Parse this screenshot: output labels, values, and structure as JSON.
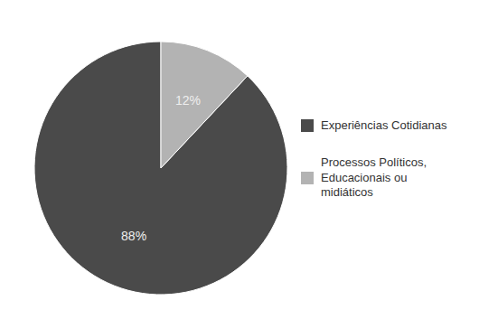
{
  "chart_data": {
    "type": "pie",
    "categories": [
      "Experiências Cotidianas",
      "Processos Políticos,\nEducacionais ou\nmidiáticos"
    ],
    "values": [
      88,
      12
    ],
    "value_labels": [
      "88%",
      "12%"
    ],
    "colors": [
      "#4a4a4a",
      "#b3b3b3"
    ],
    "data_labels": true,
    "legend": "right"
  }
}
